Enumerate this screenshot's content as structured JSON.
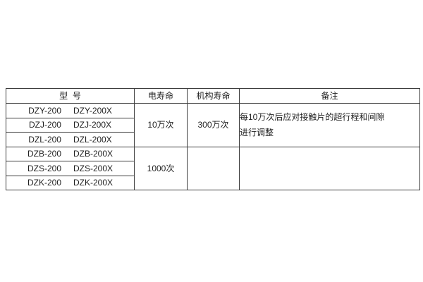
{
  "table": {
    "headers": {
      "model": "型  号",
      "electrical_life": "电寿命",
      "mechanism_life": "机构寿命",
      "remarks": "备注"
    },
    "rows": [
      {
        "models": [
          "DZY-200",
          "DZY-200X"
        ]
      },
      {
        "models": [
          "DZJ-200",
          "DZJ-200X"
        ]
      },
      {
        "models": [
          "DZL-200",
          "DZL-200X"
        ]
      },
      {
        "models": [
          "DZB-200",
          "DZB-200X"
        ]
      },
      {
        "models": [
          "DZS-200",
          "DZS-200X"
        ]
      },
      {
        "models": [
          "DZK-200",
          "DZK-200X"
        ]
      }
    ],
    "electrical_life_groups": [
      "10万次",
      "1000次"
    ],
    "mechanism_life_groups": [
      "300万次",
      ""
    ],
    "remark_lines": [
      "每10万次后应对接触片的超行程和间隙",
      "进行调整"
    ],
    "remark_bottom": ""
  },
  "colors": {
    "border": "#3c3c3c",
    "text": "#1f1f1f",
    "background": "#ffffff"
  }
}
